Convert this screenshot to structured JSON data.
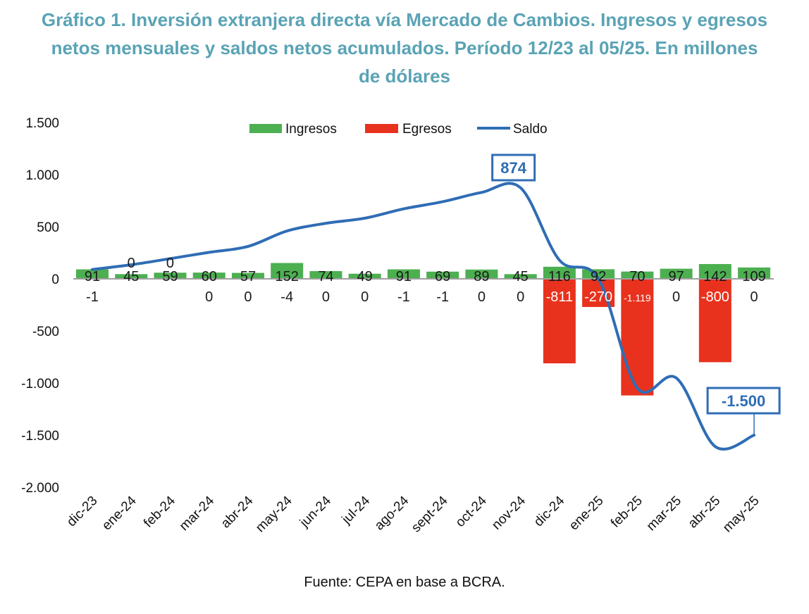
{
  "chart_data": {
    "type": "bar",
    "title": "Gráfico 1. Inversión extranjera directa vía Mercado de Cambios. Ingresos y egresos netos mensuales y saldos netos acumulados. Período 12/23 al 05/25. En millones de dólares",
    "title_lines": [
      "Gráfico 1. Inversión extranjera directa vía Mercado de Cambios. Ingresos y egresos",
      "netos mensuales y saldos netos acumulados. Período 12/23 al 05/25. En millones",
      "de dólares"
    ],
    "categories": [
      "dic-23",
      "ene-24",
      "feb-24",
      "mar-24",
      "abr-24",
      "may-24",
      "jun-24",
      "jul-24",
      "ago-24",
      "sept-24",
      "oct-24",
      "nov-24",
      "dic-24",
      "ene-25",
      "feb-25",
      "mar-25",
      "abr-25",
      "may-25"
    ],
    "series": [
      {
        "name": "Ingresos",
        "type": "bar",
        "color": "#4caf50",
        "values": [
          91,
          45,
          59,
          60,
          57,
          152,
          74,
          49,
          91,
          69,
          89,
          45,
          116,
          92,
          70,
          97,
          142,
          109
        ]
      },
      {
        "name": "Egresos",
        "type": "bar",
        "color": "#e8321e",
        "values": [
          -1,
          0,
          0,
          0,
          0,
          -4,
          0,
          0,
          -1,
          -1,
          0,
          0,
          -811,
          -270,
          -1119,
          0,
          -800,
          0
        ]
      },
      {
        "name": "Saldo",
        "type": "line",
        "color": "#2f6db5",
        "values": [
          90,
          135,
          194,
          254,
          311,
          459,
          533,
          582,
          672,
          740,
          829,
          874,
          179,
          1,
          -1048,
          -951,
          -1609,
          -1500
        ]
      }
    ],
    "annotations": [
      {
        "category": "nov-24",
        "text": "874"
      },
      {
        "category": "may-25",
        "text": "-1.500"
      }
    ],
    "ylim": [
      -2000,
      1500
    ],
    "yticks": [
      1500,
      1000,
      500,
      0,
      -500,
      -1000,
      -1500,
      -2000
    ],
    "ytick_labels": [
      "1.500",
      "1.000",
      "500",
      "0",
      "-500",
      "-1.000",
      "-1.500",
      "-2.000"
    ],
    "xlabel": "",
    "ylabel": "",
    "grid": false,
    "legend": "top-center",
    "source": "Fuente: CEPA en base a BCRA."
  }
}
